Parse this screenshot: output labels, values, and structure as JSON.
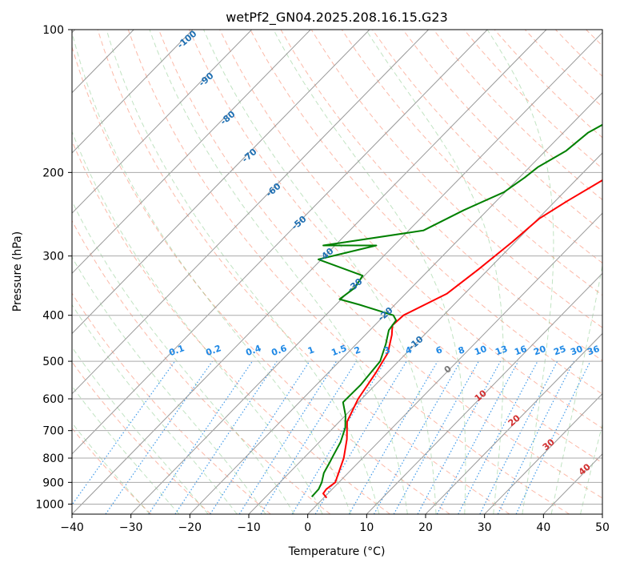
{
  "chart_data": {
    "type": "line",
    "title": "wetPf2_GN04.2025.208.16.15.G23",
    "xlabel": "Temperature (°C)",
    "ylabel": "Pressure (hPa)",
    "xlim": [
      -40,
      50
    ],
    "ylim": [
      1050,
      100
    ],
    "y_scale": "log",
    "grid": true,
    "x_ticks": [
      -40,
      -30,
      -20,
      -10,
      0,
      10,
      20,
      30,
      40,
      50
    ],
    "y_ticks": [
      1000,
      900,
      800,
      700,
      600,
      500,
      400,
      300,
      200,
      100
    ],
    "series": [
      {
        "color": "#ff0000",
        "x": [
          0.5,
          -0.8,
          -1.0,
          -0.6,
          -1.6,
          -3.2,
          -5.8,
          -8.7,
          -10.6,
          -11.9,
          -13.2,
          -15.5,
          -17.0,
          -16.8,
          -13.0,
          -11.7,
          -10.5,
          -9.8,
          -8.0,
          -4.5,
          1.5,
          8.0,
          13.5,
          17.5
        ],
        "y": [
          970,
          950,
          930,
          900,
          860,
          800,
          730,
          670,
          600,
          530,
          480,
          440,
          420,
          400,
          360,
          320,
          280,
          250,
          230,
          200,
          170,
          140,
          115,
          100
        ]
      },
      {
        "color": "#008000",
        "x": [
          -2.2,
          -2.3,
          -2.9,
          -4.1,
          -4.8,
          -5.4,
          -6.4,
          -8.0,
          -10.0,
          -12.6,
          -12.5,
          -13.1,
          -15.0,
          -16.8,
          -17.2,
          -18.5,
          -26.0,
          -30.3,
          -29.6,
          -30.3,
          -40.5,
          -33.0,
          -42.0,
          -27.5,
          -24.0,
          -20.2,
          -19.1,
          -18.6,
          -16.5,
          -15.8,
          -14.0,
          -8.5,
          -3.5,
          -0.5,
          1.0
        ],
        "y": [
          965,
          930,
          900,
          860,
          820,
          790,
          740,
          690,
          650,
          610,
          560,
          500,
          460,
          430,
          410,
          400,
          380,
          370,
          350,
          330,
          305,
          285,
          285,
          265,
          240,
          220,
          205,
          195,
          180,
          165,
          155,
          140,
          125,
          110,
          100
        ]
      }
    ],
    "isotherm_labels": [
      "-100",
      "-90",
      "-80",
      "-70",
      "-60",
      "-50",
      "-40",
      "-30",
      "-20",
      "-10"
    ],
    "mixing_ratio_labels": [
      "0.1",
      "0.2",
      "0.4",
      "0.6",
      "1",
      "1.5",
      "2",
      "3",
      "4",
      "6",
      "8",
      "10",
      "13",
      "16",
      "20",
      "25",
      "30",
      "36"
    ],
    "moist_adiabat_labels": [
      "0",
      "10",
      "20",
      "30",
      "40"
    ]
  }
}
